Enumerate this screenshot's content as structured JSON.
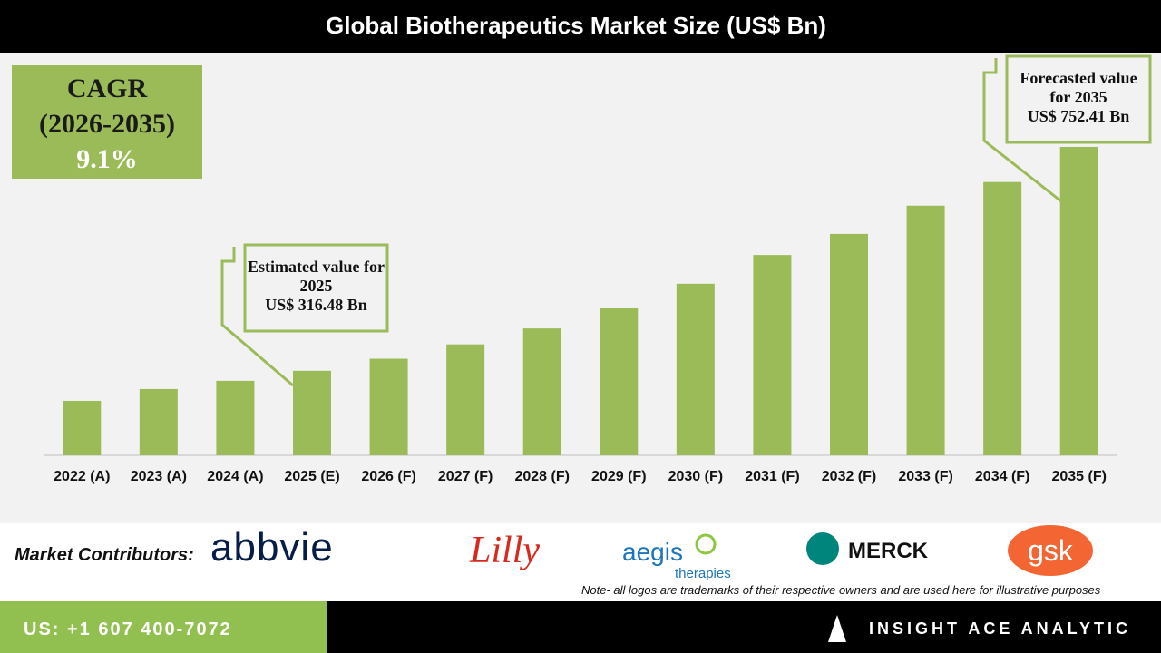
{
  "chart_data": {
    "type": "bar",
    "title": "Global Biotherapeutics Market Size (US$ Bn)",
    "categories": [
      "2022 (A)",
      "2023 (A)",
      "2024 (A)",
      "2025 (E)",
      "2026 (F)",
      "2027 (F)",
      "2028 (F)",
      "2029 (F)",
      "2030 (F)",
      "2031 (F)",
      "2032 (F)",
      "2033 (F)",
      "2034 (F)",
      "2035 (F)"
    ],
    "values": [
      258,
      281,
      297,
      316.48,
      340,
      368,
      399,
      438,
      486,
      542,
      583,
      638,
      684,
      752.41
    ],
    "value_labels": [
      null,
      null,
      null,
      "US$ 316.48 Bn",
      null,
      null,
      null,
      null,
      null,
      null,
      null,
      null,
      null,
      "US$ 752.41 Bn"
    ],
    "annotations": [
      "Estimated value for 2025",
      "Forecasted value for 2035"
    ],
    "color": "#9bbb59",
    "ylim": [
      152,
      770
    ],
    "cagr": {
      "label": "CAGR",
      "period": "(2026-2035)",
      "value": "9.1%"
    }
  },
  "contributors": {
    "label": "Market Contributors:",
    "logos": [
      "abbvie",
      "Lilly",
      "aegis",
      "therapies",
      "MERCK",
      "gsk"
    ],
    "note": "Note- all logos are trademarks of their respective owners and are used here for illustrative purposes"
  },
  "footer": {
    "phone": "US: +1 607 400-7072",
    "brand": "INSIGHT ACE ANALYTIC"
  }
}
